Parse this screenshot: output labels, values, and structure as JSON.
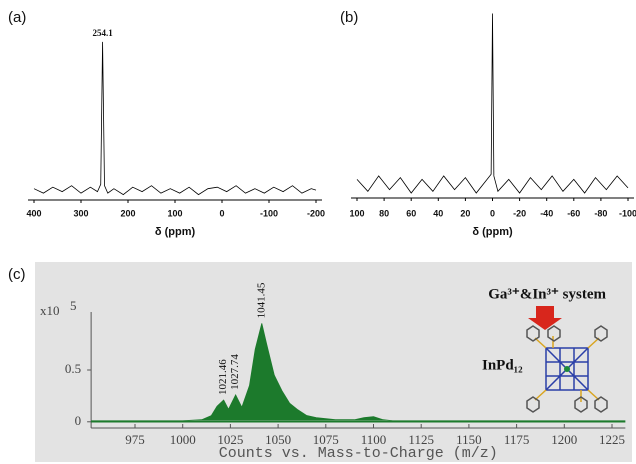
{
  "chart_data": [
    {
      "type": "line",
      "panel_label": "(a)",
      "xlabel": "δ (ppm)",
      "x": [
        400,
        380,
        360,
        340,
        320,
        300,
        280,
        265,
        258,
        254.1,
        250,
        243,
        230,
        210,
        190,
        170,
        150,
        130,
        110,
        90,
        70,
        50,
        30,
        10,
        -10,
        -30,
        -50,
        -70,
        -90,
        -110,
        -130,
        -150,
        -170,
        -190,
        -200
      ],
      "values": [
        1,
        -2,
        2,
        -1,
        3,
        -2,
        2,
        -1,
        4,
        100,
        3,
        -2,
        1,
        -3,
        2,
        -1,
        3,
        -2,
        1,
        -2,
        2,
        -3,
        1,
        2,
        -1,
        3,
        -2,
        1,
        -2,
        2,
        -1,
        3,
        -2,
        1,
        0
      ],
      "color": "#000000",
      "xlim": [
        400,
        -200
      ],
      "xticks": [
        400,
        300,
        200,
        100,
        0,
        -100,
        -200
      ],
      "ylim": [
        -10,
        110
      ],
      "annotations": [
        254.1
      ]
    },
    {
      "type": "line",
      "panel_label": "(b)",
      "xlabel": "δ (ppm)",
      "x": [
        100,
        92,
        84,
        76,
        68,
        60,
        52,
        44,
        36,
        28,
        20,
        12,
        4,
        1,
        0,
        -1,
        -4,
        -12,
        -20,
        -28,
        -36,
        -44,
        -52,
        -60,
        -68,
        -76,
        -84,
        -92,
        -100
      ],
      "values": [
        3,
        -4,
        5,
        -3,
        4,
        -5,
        3,
        -4,
        5,
        -3,
        4,
        -5,
        3,
        6,
        100,
        5,
        -4,
        3,
        -5,
        4,
        -3,
        5,
        -4,
        3,
        -5,
        4,
        -3,
        5,
        -2
      ],
      "color": "#000000",
      "xlim": [
        100,
        -100
      ],
      "xticks": [
        100,
        80,
        60,
        40,
        20,
        0,
        -20,
        -40,
        -60,
        -80,
        -100
      ],
      "ylim": [
        -12,
        105
      ]
    },
    {
      "type": "area",
      "panel_label": "(c)",
      "xlabel": "Counts vs. Mass-to-Charge (m/z)",
      "y_multiplier": "x10",
      "y_multiplier_exponent": "5",
      "x": [
        952,
        1000,
        1010,
        1015,
        1018,
        1021.46,
        1024,
        1027.74,
        1031,
        1035,
        1038,
        1041.45,
        1044,
        1048,
        1052,
        1056,
        1060,
        1065,
        1070,
        1080,
        1090,
        1095,
        1100,
        1105,
        1110,
        1232
      ],
      "values": [
        0.01,
        0.01,
        0.02,
        0.06,
        0.15,
        0.21,
        0.12,
        0.26,
        0.14,
        0.35,
        0.7,
        0.95,
        0.75,
        0.45,
        0.3,
        0.18,
        0.12,
        0.06,
        0.04,
        0.02,
        0.02,
        0.04,
        0.05,
        0.02,
        0.01,
        0.01
      ],
      "color": "#1c7a2c",
      "xlim": [
        952,
        1232
      ],
      "xticks": [
        975,
        1000,
        1025,
        1050,
        1075,
        1100,
        1125,
        1150,
        1175,
        1200,
        1225
      ],
      "ylim": [
        -0.06,
        1.06
      ],
      "yticks": [
        0,
        0.5
      ],
      "annotations": [
        1021.46,
        1027.74,
        1041.45
      ],
      "inset": {
        "text": "Ga³⁺&In³⁺ system",
        "label": "InPd₁₂"
      }
    }
  ]
}
